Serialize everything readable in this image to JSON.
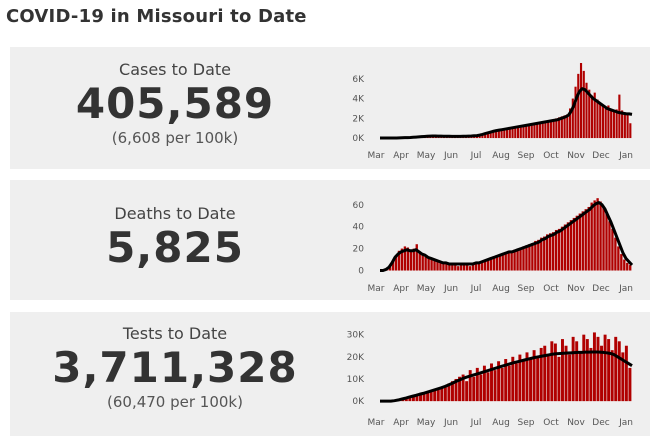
{
  "title": "COVID-19 in Missouri to Date",
  "panels": [
    {
      "label": "Cases to Date",
      "value": "405,589",
      "sub": "(6,608 per 100k)"
    },
    {
      "label": "Deaths to Date",
      "value": "5,825",
      "sub": ""
    },
    {
      "label": "Tests to Date",
      "value": "3,711,328",
      "sub": "(60,470 per 100k)"
    }
  ],
  "colors": {
    "bar": "#b00000",
    "line": "#000000",
    "panel": "#efefef"
  },
  "chart_data": [
    {
      "type": "bar",
      "title": "",
      "xlabel": "",
      "ylabel": "",
      "x_ticks": [
        "Mar",
        "Apr",
        "May",
        "Jun",
        "Jul",
        "Aug",
        "Sep",
        "Oct",
        "Nov",
        "Dec",
        "Jan"
      ],
      "y_ticks": [
        {
          "value": 0,
          "label": "0K"
        },
        {
          "value": 2000,
          "label": "2K"
        },
        {
          "value": 4000,
          "label": "4K"
        },
        {
          "value": 6000,
          "label": "6K"
        }
      ],
      "ylim": [
        -500,
        7600
      ],
      "series": [
        {
          "type": "bar",
          "values": [
            0,
            0,
            0,
            0,
            0,
            0,
            10,
            20,
            30,
            40,
            50,
            60,
            90,
            120,
            150,
            180,
            200,
            240,
            280,
            300,
            290,
            260,
            250,
            240,
            230,
            210,
            200,
            190,
            180,
            190,
            200,
            210,
            220,
            230,
            250,
            270,
            320,
            400,
            500,
            600,
            700,
            800,
            850,
            900,
            950,
            1000,
            1050,
            1100,
            1150,
            1200,
            1250,
            1300,
            1350,
            1400,
            1450,
            1500,
            1550,
            1600,
            1650,
            1700,
            1750,
            1800,
            1850,
            1900,
            2000,
            2100,
            2200,
            2300,
            2400,
            3000,
            4000,
            5200,
            6500,
            7600,
            6800,
            5600,
            4900,
            4300,
            4600,
            3900,
            3500,
            3200,
            3000,
            3300,
            2900,
            2700,
            2900,
            4400,
            2800,
            2600,
            2500,
            1500
          ]
        },
        {
          "type": "line",
          "values": [
            0,
            0,
            0,
            0,
            0,
            0,
            10,
            20,
            30,
            40,
            50,
            60,
            80,
            100,
            120,
            140,
            160,
            180,
            200,
            210,
            210,
            200,
            195,
            190,
            185,
            180,
            175,
            170,
            170,
            175,
            180,
            190,
            200,
            210,
            230,
            250,
            300,
            370,
            450,
            530,
            610,
            690,
            750,
            800,
            850,
            900,
            950,
            1000,
            1050,
            1100,
            1150,
            1200,
            1250,
            1300,
            1350,
            1400,
            1450,
            1500,
            1550,
            1600,
            1650,
            1700,
            1750,
            1800,
            1850,
            1950,
            2050,
            2150,
            2300,
            2700,
            3300,
            4100,
            4700,
            5000,
            4900,
            4600,
            4300,
            4000,
            3800,
            3600,
            3400,
            3200,
            3000,
            2900,
            2800,
            2700,
            2600,
            2550,
            2500,
            2450,
            2450,
            2400
          ]
        }
      ]
    },
    {
      "type": "bar",
      "title": "",
      "xlabel": "",
      "ylabel": "",
      "x_ticks": [
        "Mar",
        "Apr",
        "May",
        "Jun",
        "Jul",
        "Aug",
        "Sep",
        "Oct",
        "Nov",
        "Dec",
        "Jan"
      ],
      "y_ticks": [
        {
          "value": 0,
          "label": "0"
        },
        {
          "value": 20,
          "label": "20"
        },
        {
          "value": 40,
          "label": "40"
        },
        {
          "value": 60,
          "label": "60"
        }
      ],
      "ylim": [
        -5,
        68
      ],
      "series": [
        {
          "type": "bar",
          "values": [
            0,
            0,
            1,
            3,
            8,
            14,
            18,
            20,
            22,
            21,
            18,
            20,
            24,
            17,
            15,
            14,
            12,
            10,
            9,
            8,
            7,
            6,
            6,
            5,
            5,
            5,
            4,
            5,
            5,
            5,
            4,
            5,
            6,
            6,
            7,
            8,
            10,
            12,
            13,
            14,
            15,
            16,
            17,
            18,
            18,
            19,
            20,
            21,
            22,
            23,
            24,
            25,
            27,
            28,
            30,
            31,
            33,
            34,
            35,
            37,
            38,
            40,
            42,
            44,
            46,
            48,
            50,
            52,
            54,
            56,
            58,
            62,
            64,
            66,
            63,
            58,
            52,
            45,
            38,
            30,
            22,
            15,
            10,
            7,
            5
          ]
        },
        {
          "type": "line",
          "values": [
            0,
            0,
            1,
            3,
            7,
            12,
            15,
            17,
            18,
            19,
            18,
            18,
            19,
            17,
            15,
            14,
            12,
            11,
            10,
            9,
            8,
            7,
            7,
            6,
            6,
            6,
            6,
            6,
            6,
            6,
            6,
            6,
            7,
            7,
            8,
            9,
            10,
            11,
            12,
            13,
            14,
            15,
            16,
            17,
            17,
            18,
            19,
            20,
            21,
            22,
            23,
            24,
            25,
            26,
            28,
            29,
            31,
            32,
            33,
            35,
            36,
            38,
            40,
            42,
            44,
            46,
            48,
            50,
            52,
            54,
            56,
            59,
            61,
            62,
            60,
            56,
            50,
            44,
            37,
            30,
            23,
            16,
            11,
            8,
            5
          ]
        }
      ]
    },
    {
      "type": "bar",
      "title": "",
      "xlabel": "",
      "ylabel": "",
      "x_ticks": [
        "Mar",
        "Apr",
        "May",
        "Jun",
        "Jul",
        "Aug",
        "Sep",
        "Oct",
        "Nov",
        "Dec",
        "Jan"
      ],
      "y_ticks": [
        {
          "value": 0,
          "label": "0K"
        },
        {
          "value": 10000,
          "label": "10K"
        },
        {
          "value": 20000,
          "label": "20K"
        },
        {
          "value": 30000,
          "label": "30K"
        }
      ],
      "ylim": [
        -4000,
        33000
      ],
      "series": [
        {
          "type": "bar",
          "values": [
            0,
            0,
            0,
            0,
            200,
            600,
            1000,
            1500,
            2000,
            2500,
            3000,
            3500,
            4000,
            4500,
            5000,
            5500,
            6000,
            6500,
            7000,
            8000,
            9000,
            10000,
            11000,
            12000,
            9000,
            14000,
            11000,
            15000,
            12000,
            16000,
            13000,
            17000,
            14000,
            18000,
            15000,
            19000,
            16000,
            20000,
            17000,
            21000,
            18000,
            22000,
            19000,
            23000,
            20000,
            24000,
            25000,
            21000,
            27000,
            26000,
            20000,
            28000,
            25000,
            21000,
            29000,
            27000,
            22000,
            30000,
            28000,
            24000,
            31000,
            29000,
            25000,
            30000,
            28000,
            23000,
            29000,
            27000,
            22000,
            25000,
            15000
          ]
        },
        {
          "type": "line",
          "values": [
            0,
            0,
            0,
            0,
            200,
            500,
            900,
            1300,
            1800,
            2200,
            2600,
            3100,
            3500,
            4000,
            4500,
            5000,
            5500,
            6000,
            6600,
            7300,
            8000,
            8800,
            9500,
            10200,
            10800,
            11300,
            11800,
            12300,
            12800,
            13300,
            13800,
            14300,
            14800,
            15300,
            15800,
            16300,
            16800,
            17300,
            17700,
            18100,
            18500,
            18900,
            19300,
            19700,
            20000,
            20300,
            20600,
            20900,
            21200,
            21400,
            21500,
            21600,
            21700,
            21800,
            21900,
            22000,
            22000,
            22100,
            22100,
            22200,
            22200,
            22100,
            22000,
            21800,
            21500,
            21000,
            20000,
            19000,
            18000,
            17000,
            16000
          ]
        }
      ]
    }
  ]
}
